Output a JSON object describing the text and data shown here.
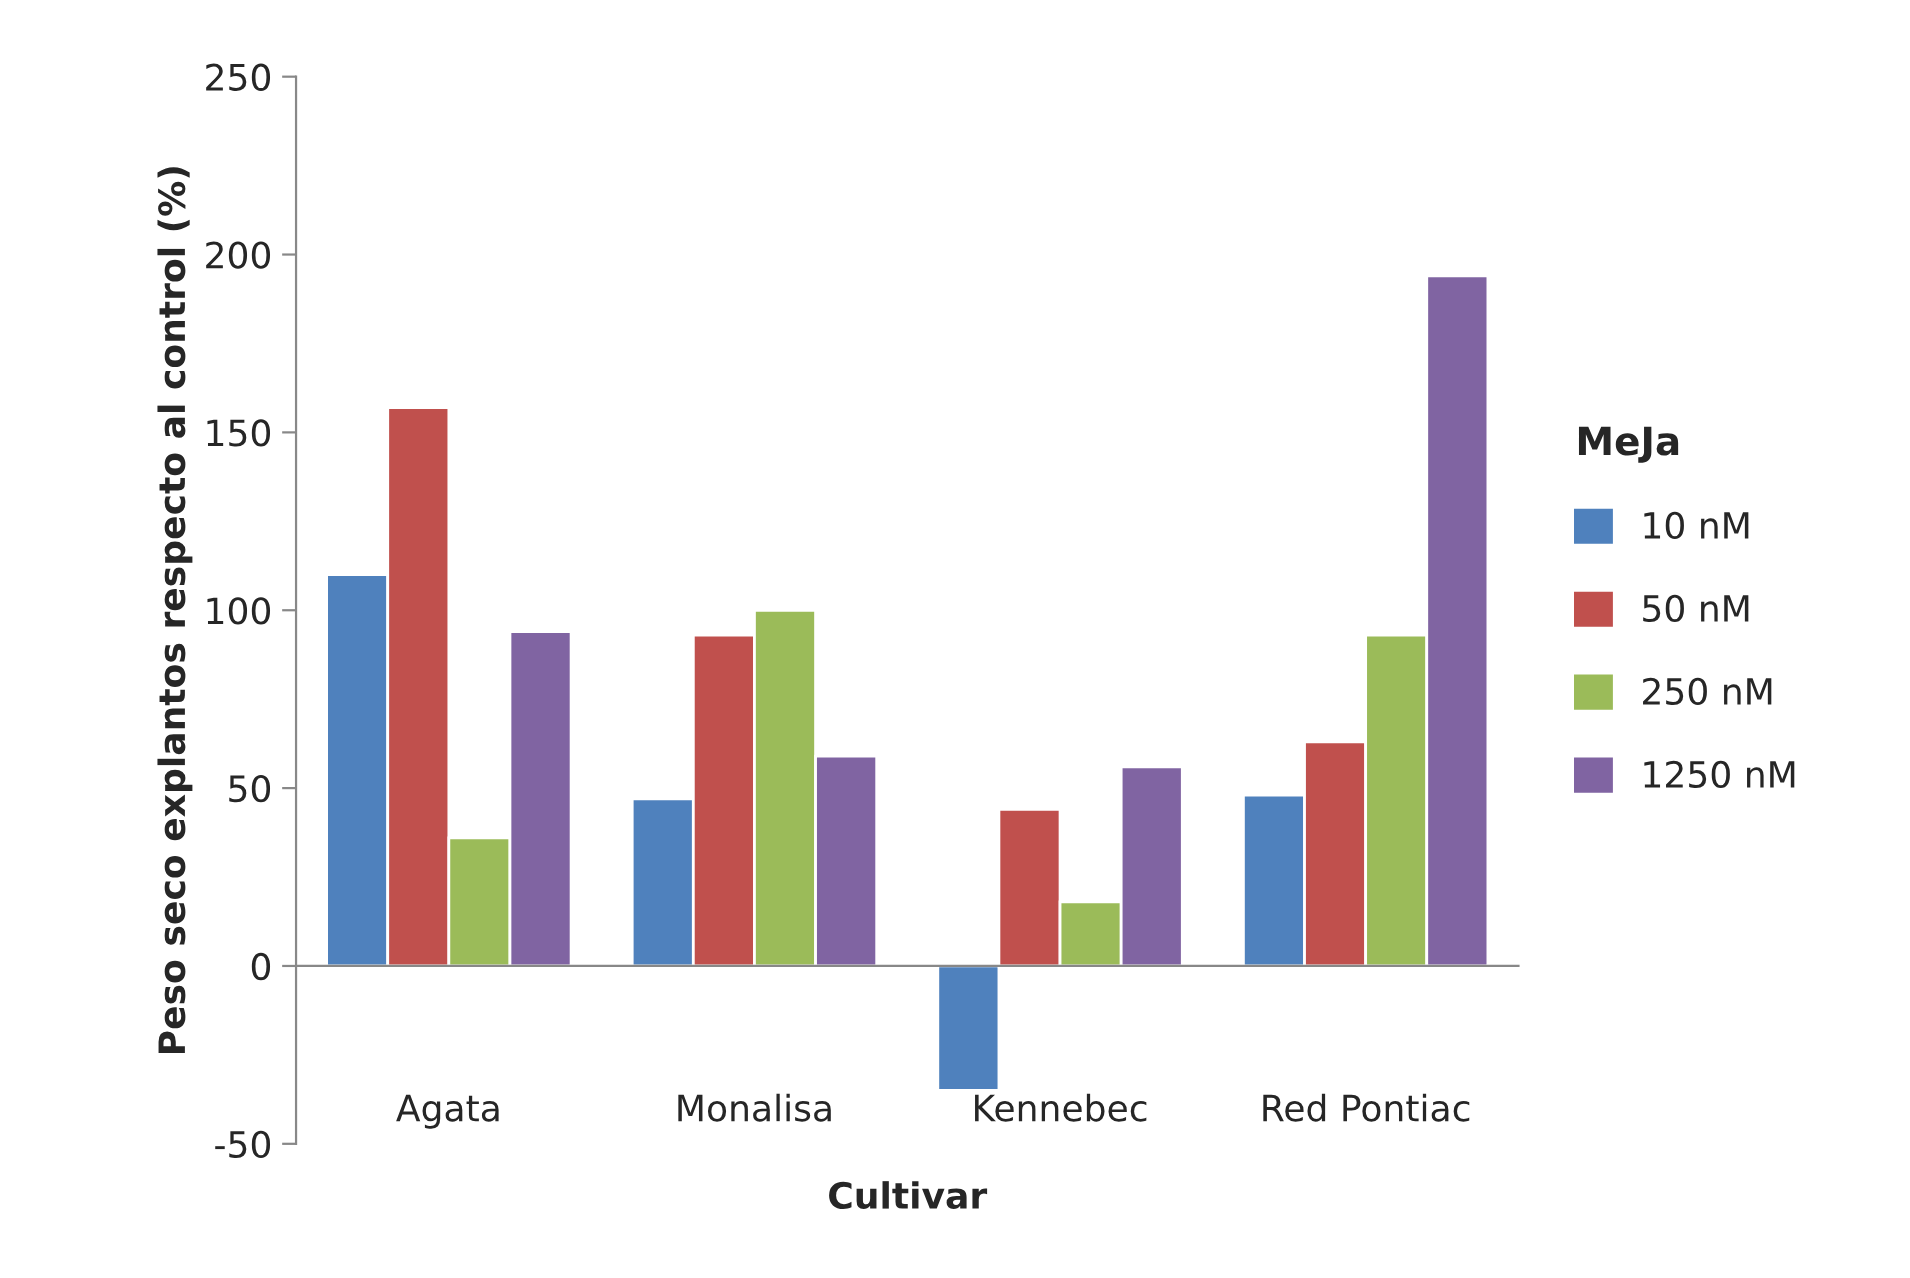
{
  "chart_data": {
    "type": "bar",
    "xlabel": "Cultivar",
    "ylabel": "Peso seco explantos respecto al control (%)",
    "legend_title": "MeJa",
    "categories": [
      "Agata",
      "Monalisa",
      "Kennebec",
      "Red Pontiac"
    ],
    "series": [
      {
        "name": "10 nM",
        "color": "#4f81bd",
        "values": [
          110,
          47,
          -35,
          48
        ]
      },
      {
        "name": "50 nM",
        "color": "#c0504d",
        "values": [
          157,
          93,
          44,
          63
        ]
      },
      {
        "name": "250 nM",
        "color": "#9bbb59",
        "values": [
          36,
          100,
          18,
          93
        ]
      },
      {
        "name": "1250 nM",
        "color": "#8064a2",
        "values": [
          94,
          59,
          56,
          194
        ]
      }
    ],
    "ylim": [
      -50,
      250
    ],
    "yticks": [
      -50,
      0,
      50,
      100,
      150,
      200,
      250
    ],
    "legend": "right"
  }
}
